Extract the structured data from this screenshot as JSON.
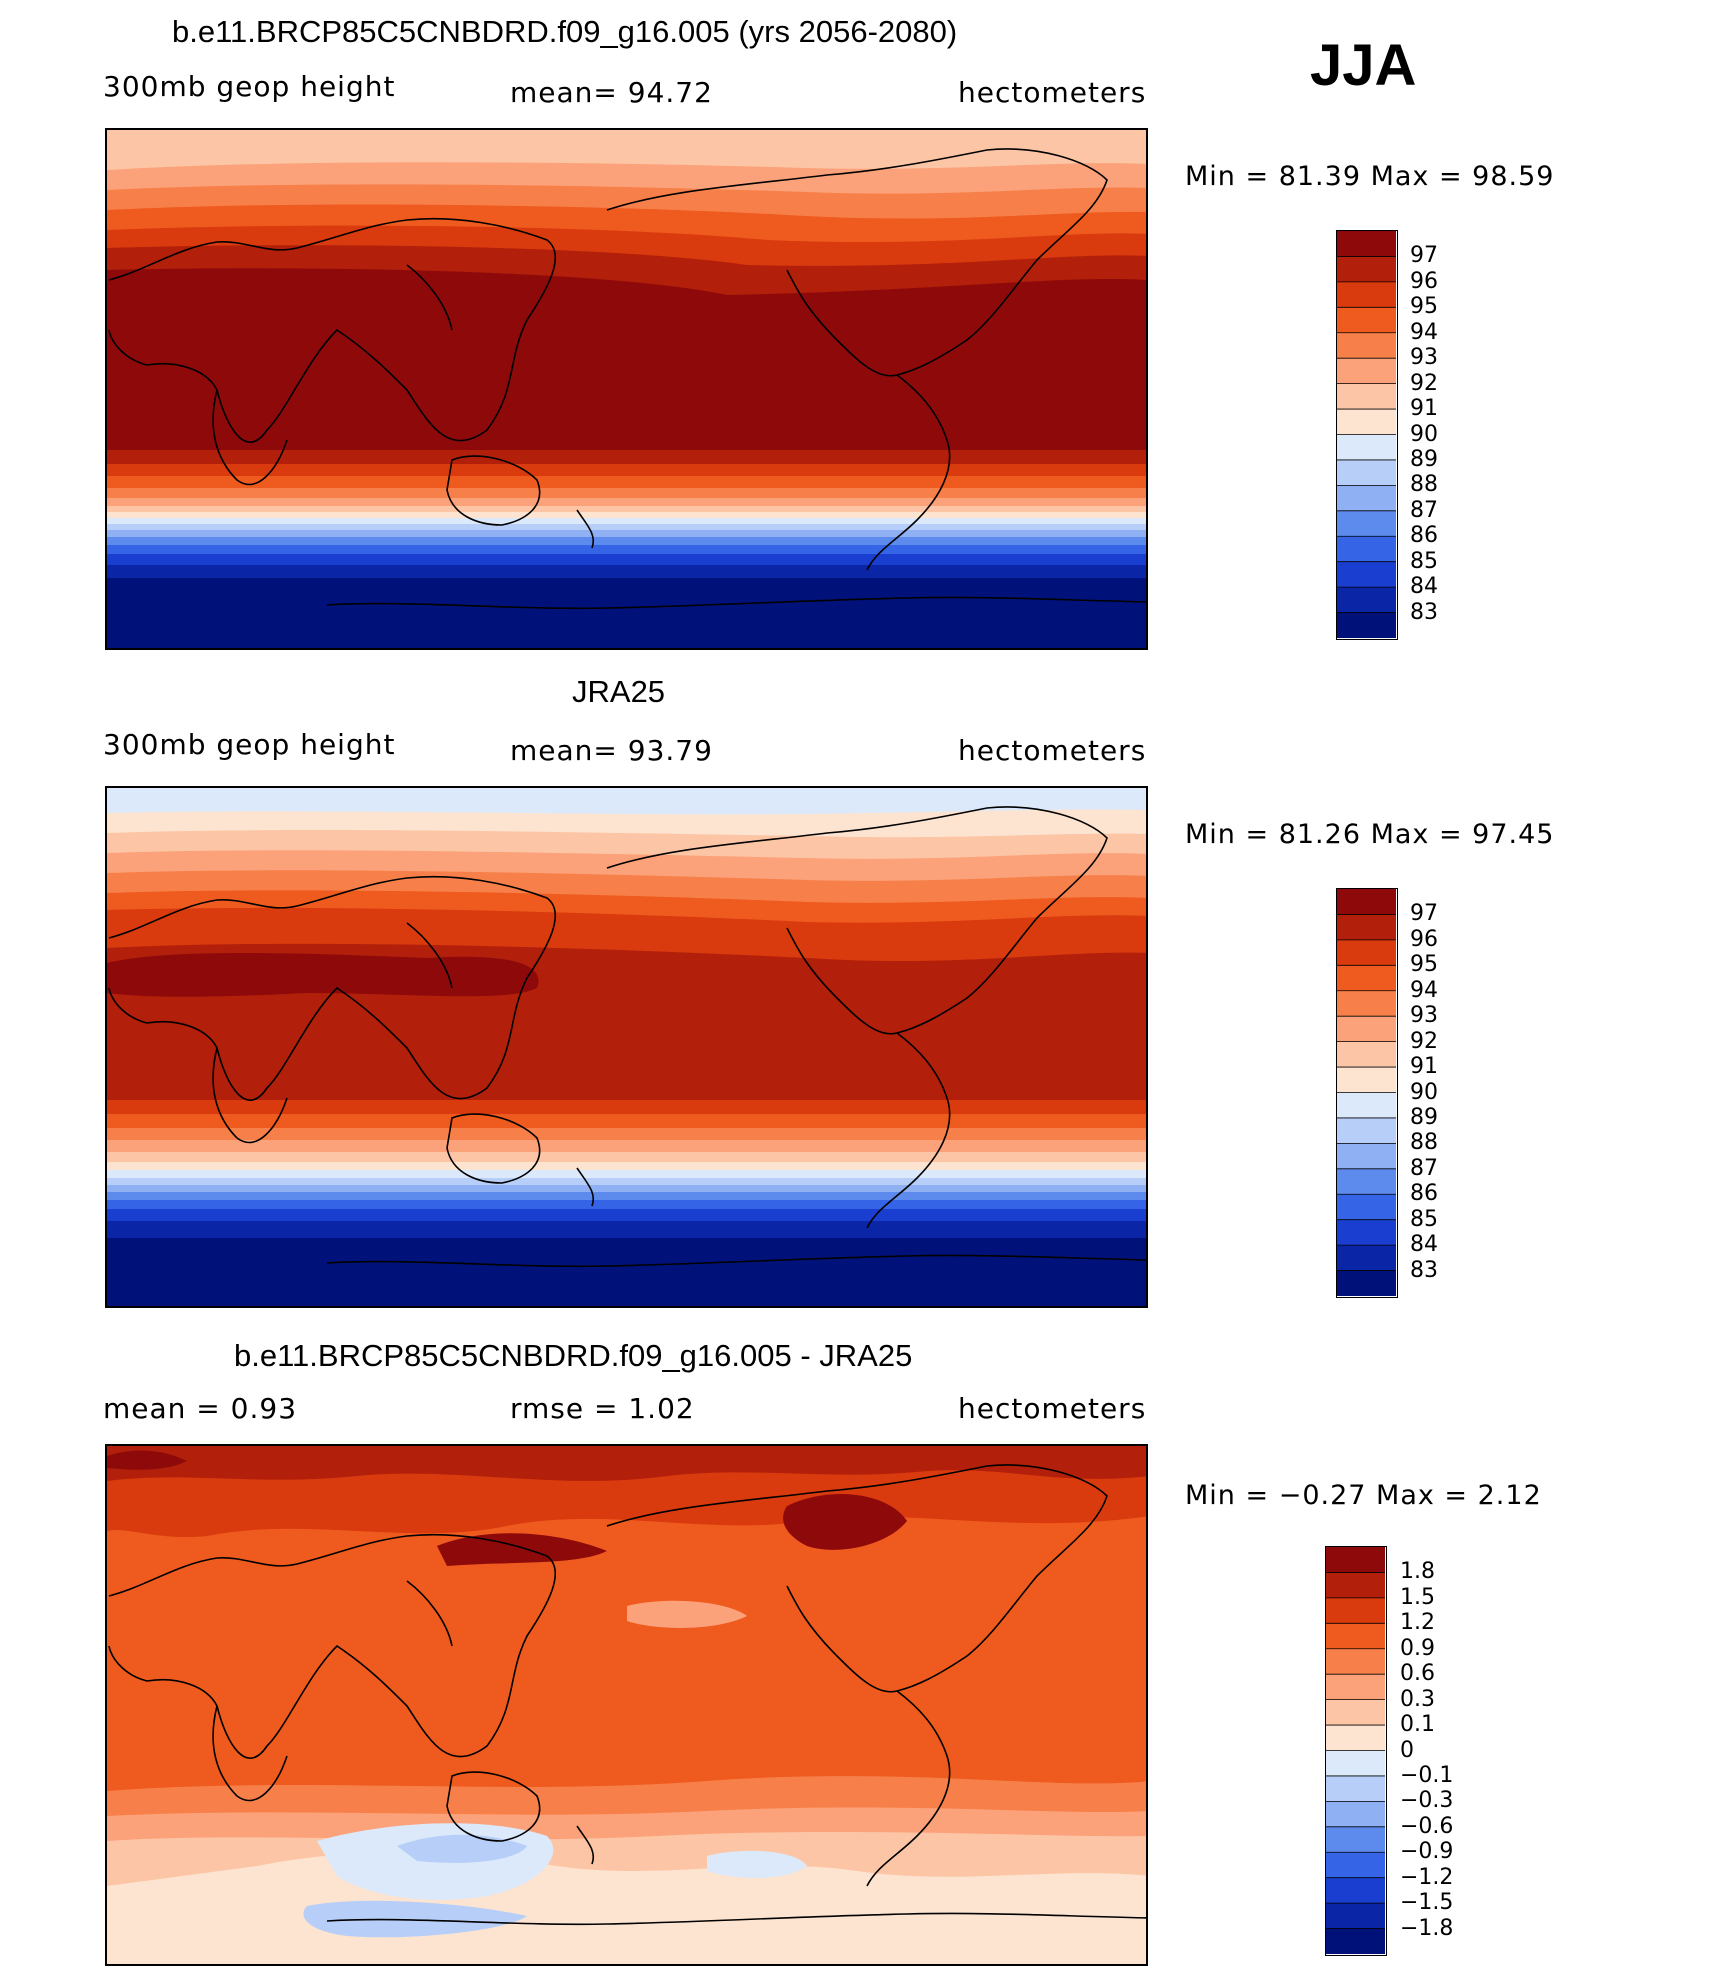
{
  "season": "JJA",
  "coastline_layer": "continent outlines",
  "panels": [
    {
      "title": "b.e11.BRCP85C5CNBDRD.f09_g16.005 (yrs 2056-2080)",
      "left_label": "300mb geop height",
      "center_label": "mean=   94.72",
      "right_label": "hectometers",
      "minmax": "Min =   81.39  Max =    98.59",
      "legend_labels": [
        "97",
        "96",
        "95",
        "94",
        "93",
        "92",
        "91",
        "90",
        "89",
        "88",
        "87",
        "86",
        "85",
        "84",
        "83"
      ],
      "legend_colors": [
        "#8e0a0a",
        "#b21f0a",
        "#d93a0e",
        "#ef5a1e",
        "#f7804a",
        "#fba27a",
        "#fcc6a6",
        "#fde4d0",
        "#dbe9fb",
        "#b7cff8",
        "#8fb1f3",
        "#5d8bed",
        "#3564e6",
        "#1a3fd0",
        "#0a25a6",
        "#00127a"
      ],
      "field_note": "warm tropics, strong cold band south of 40S"
    },
    {
      "title": "JRA25",
      "left_label": "300mb geop height",
      "center_label": "mean=   93.79",
      "right_label": "hectometers",
      "minmax": "Min =   81.26  Max =    97.45",
      "legend_labels": [
        "97",
        "96",
        "95",
        "94",
        "93",
        "92",
        "91",
        "90",
        "89",
        "88",
        "87",
        "86",
        "85",
        "84",
        "83"
      ],
      "legend_colors": [
        "#8e0a0a",
        "#b21f0a",
        "#d93a0e",
        "#ef5a1e",
        "#f7804a",
        "#fba27a",
        "#fcc6a6",
        "#fde4d0",
        "#dbe9fb",
        "#b7cff8",
        "#8fb1f3",
        "#5d8bed",
        "#3564e6",
        "#1a3fd0",
        "#0a25a6",
        "#00127a"
      ],
      "field_note": "observed reanalysis"
    },
    {
      "title": "b.e11.BRCP85C5CNBDRD.f09_g16.005 - JRA25",
      "left_label": "mean =     0.93",
      "center_label": "rmse =     1.02",
      "right_label": "hectometers",
      "minmax": "Min =   −0.27  Max =     2.12",
      "legend_labels": [
        "1.8",
        "1.5",
        "1.2",
        "0.9",
        "0.6",
        "0.3",
        "0.1",
        "0",
        "−0.1",
        "−0.3",
        "−0.6",
        "−0.9",
        "−1.2",
        "−1.5",
        "−1.8"
      ],
      "legend_colors": [
        "#8e0a0a",
        "#b21f0a",
        "#d93a0e",
        "#ef5a1e",
        "#f7804a",
        "#fba27a",
        "#fcc6a6",
        "#fde4d0",
        "#dbe9fb",
        "#b7cff8",
        "#8fb1f3",
        "#5d8bed",
        "#3564e6",
        "#1a3fd0",
        "#0a25a6",
        "#00127a"
      ],
      "field_note": "difference field"
    }
  ]
}
